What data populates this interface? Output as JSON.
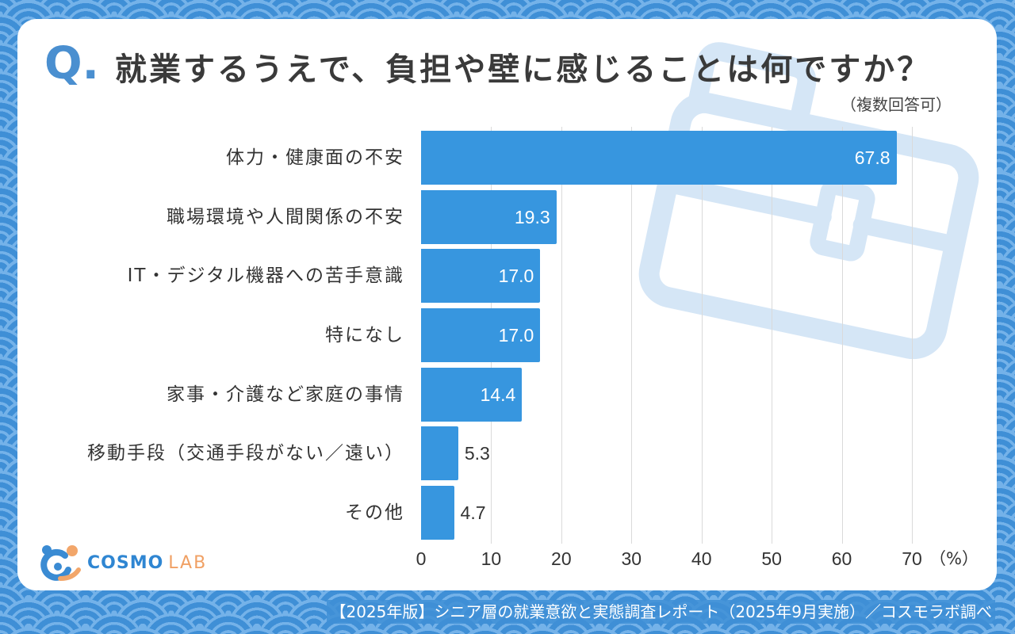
{
  "header": {
    "q_mark": "Q."
  },
  "chart_data": {
    "type": "bar",
    "orientation": "horizontal",
    "title": "就業するうえで、負担や壁に感じることは何ですか？",
    "subtitle": "（複数回答可）",
    "categories": [
      "体力・健康面の不安",
      "職場環境や人間関係の不安",
      "IT・デジタル機器への苦手意識",
      "特になし",
      "家事・介護など家庭の事情",
      "移動手段（交通手段がない／遠い）",
      "その他"
    ],
    "values": [
      67.8,
      19.3,
      17.0,
      17.0,
      14.4,
      5.3,
      4.7
    ],
    "value_labels": [
      "67.8",
      "19.3",
      "17.0",
      "17.0",
      "14.4",
      "5.3",
      "4.7"
    ],
    "xlim": [
      0,
      70
    ],
    "xticks": [
      0,
      10,
      20,
      30,
      40,
      50,
      60,
      70
    ],
    "xunit": "（%）",
    "grid": true
  },
  "logo": {
    "name_main": "COSMO",
    "name_sub": "LAB",
    "icon": "cosmo-lab-logo-icon"
  },
  "watermark": {
    "icon": "briefcase-icon"
  },
  "footer": {
    "credit": "【2025年版】シニア層の就業意欲と実態調査レポート（2025年9月実施）／コスモラボ調べ"
  },
  "colors": {
    "bar": "#3796df",
    "accent": "#4a8fd0",
    "watermark": "#d5e6f6",
    "background": "#3f8fd6"
  }
}
